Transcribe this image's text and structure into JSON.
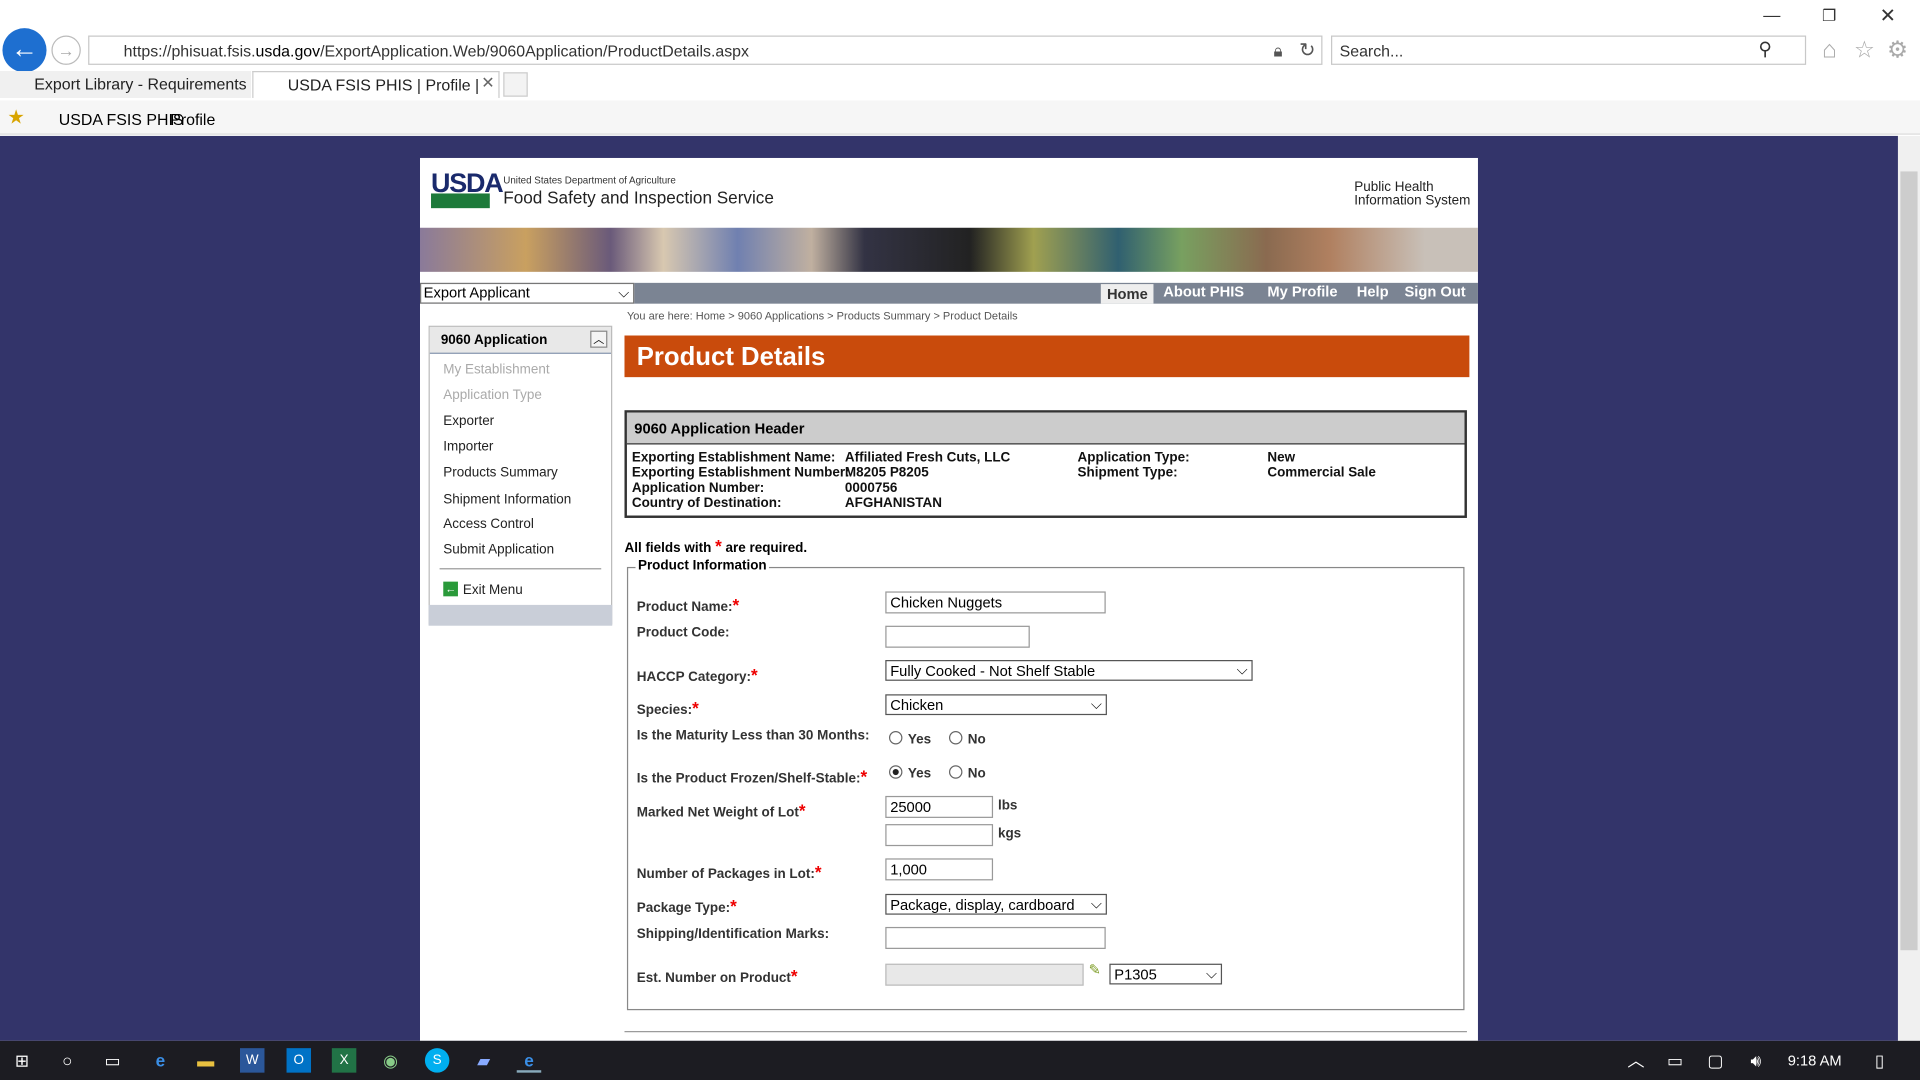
{
  "browser": {
    "url_prefix": "https://phisuat.fsis.",
    "url_domain": "usda.gov",
    "url_path": "/ExportApplication.Web/9060Application/ProductDetails.aspx",
    "search_placeholder": "Search...",
    "tabs": [
      {
        "label": "Export Library - Requirements ...",
        "active": false
      },
      {
        "label": "USDA FSIS PHIS | Profile |",
        "active": true
      }
    ],
    "favorites": [
      {
        "label": "USDA FSIS PHIS"
      },
      {
        "label": "Profile"
      }
    ]
  },
  "header": {
    "usda": "USDA",
    "dept": "United States Department of Agriculture",
    "agency": "Food Safety and Inspection Service",
    "system_line1": "Public Health",
    "system_line2": "Information System"
  },
  "nav": {
    "role_select": "Export Applicant",
    "links": [
      "Home",
      "About PHIS",
      "My Profile",
      "Help",
      "Sign Out"
    ]
  },
  "breadcrumb": "You are here: Home > 9060 Applications > Products Summary > Product Details",
  "sidebar": {
    "title": "9060 Application",
    "items": [
      {
        "label": "My Establishment",
        "disabled": true
      },
      {
        "label": "Application Type",
        "disabled": true
      },
      {
        "label": "Exporter"
      },
      {
        "label": "Importer"
      },
      {
        "label": "Products Summary"
      },
      {
        "label": "Shipment Information"
      },
      {
        "label": "Access Control"
      },
      {
        "label": "Submit Application"
      }
    ],
    "exit": "Exit Menu"
  },
  "page_title": "Product Details",
  "app_header": {
    "title": "9060 Application Header",
    "left": [
      {
        "k": "Exporting Establishment Name:",
        "v": "Affiliated Fresh Cuts, LLC"
      },
      {
        "k": "Exporting Establishment Number:",
        "v": "M8205 P8205"
      },
      {
        "k": "Application Number:",
        "v": "0000756"
      },
      {
        "k": "Country of Destination:",
        "v": "AFGHANISTAN"
      }
    ],
    "right": [
      {
        "k": "Application Type:",
        "v": "New"
      },
      {
        "k": "Shipment Type:",
        "v": "Commercial Sale"
      }
    ]
  },
  "required_note_pre": "All fields with",
  "required_note_post": "are required.",
  "form": {
    "legend": "Product Information",
    "product_name": {
      "label": "Product Name:",
      "value": "Chicken Nuggets"
    },
    "product_code": {
      "label": "Product Code:",
      "value": ""
    },
    "haccp": {
      "label": "HACCP Category:",
      "value": "Fully Cooked - Not Shelf Stable"
    },
    "species": {
      "label": "Species:",
      "value": "Chicken"
    },
    "maturity": {
      "label": "Is the Maturity Less than 30 Months:",
      "yes": "Yes",
      "no": "No",
      "selected": null
    },
    "frozen": {
      "label": "Is the Product Frozen/Shelf-Stable:",
      "yes": "Yes",
      "no": "No",
      "selected": "Yes"
    },
    "weight": {
      "label": "Marked Net Weight of Lot",
      "lbs": "25000",
      "lbs_unit": "lbs",
      "kgs": "",
      "kgs_unit": "kgs"
    },
    "packages": {
      "label": "Number of Packages in Lot:",
      "value": "1,000"
    },
    "package_type": {
      "label": "Package Type:",
      "value": "Package, display, cardboard"
    },
    "marks": {
      "label": "Shipping/Identification Marks:",
      "value": ""
    },
    "est_number": {
      "label": "Est. Number on Product",
      "value": "",
      "select": "P1305"
    }
  },
  "taskbar": {
    "time": "9:18 AM"
  }
}
